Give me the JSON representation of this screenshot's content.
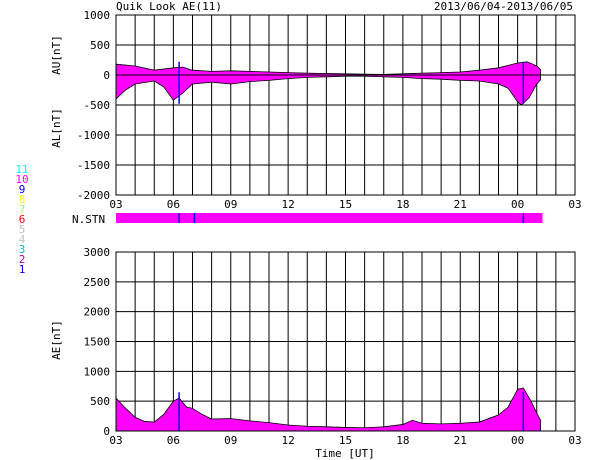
{
  "header": {
    "title": "Quik Look AE(11)",
    "date_range": "2013/06/04-2013/06/05"
  },
  "colors": {
    "fill": "#ff00ff",
    "axis": "#000000",
    "marker": "#0000ff",
    "station_bar": "#ff00ff"
  },
  "station_legend": [
    {
      "label": "11",
      "color": "#00ffff"
    },
    {
      "label": "10",
      "color": "#ff00ff"
    },
    {
      "label": "9",
      "color": "#0000ff"
    },
    {
      "label": "8",
      "color": "#ffff00"
    },
    {
      "label": "7",
      "color": "#a0ff60"
    },
    {
      "label": "6",
      "color": "#ff0000"
    },
    {
      "label": "5",
      "color": "#c0c0c0"
    },
    {
      "label": "4",
      "color": "#c0c0c0"
    },
    {
      "label": "3",
      "color": "#00c0c0"
    },
    {
      "label": "2",
      "color": "#b000b0"
    },
    {
      "label": "1",
      "color": "#0000ff"
    }
  ],
  "station_label": "N.STN",
  "xlabel": "Time [UT]",
  "chart_data": [
    {
      "type": "area",
      "ylabel_upper": "AU[nT]",
      "ylabel_lower": "AL[nT]",
      "ylim": [
        -2000,
        1000
      ],
      "y_ticks": [
        1000,
        500,
        0,
        -500,
        -1000,
        -1500,
        -2000
      ],
      "x_ticks": [
        "03",
        "06",
        "09",
        "12",
        "15",
        "18",
        "21",
        "00",
        "03"
      ],
      "x_range_hours": [
        3,
        27
      ],
      "grid": true,
      "series": [
        {
          "values_au": [
            [
              3,
              180
            ],
            [
              4,
              150
            ],
            [
              5,
              80
            ],
            [
              6,
              120
            ],
            [
              6.5,
              130
            ],
            [
              7,
              80
            ],
            [
              8,
              60
            ],
            [
              9,
              70
            ],
            [
              10,
              60
            ],
            [
              11,
              50
            ],
            [
              12,
              40
            ],
            [
              13,
              30
            ],
            [
              14,
              25
            ],
            [
              15,
              20
            ],
            [
              16,
              15
            ],
            [
              17,
              10
            ],
            [
              18,
              20
            ],
            [
              19,
              30
            ],
            [
              20,
              40
            ],
            [
              21,
              50
            ],
            [
              22,
              80
            ],
            [
              23,
              120
            ],
            [
              24,
              200
            ],
            [
              24.5,
              220
            ],
            [
              25,
              150
            ],
            [
              25.2,
              90
            ]
          ],
          "values_al": [
            [
              3,
              -400
            ],
            [
              3.5,
              -250
            ],
            [
              4,
              -150
            ],
            [
              5,
              -100
            ],
            [
              5.5,
              -200
            ],
            [
              6,
              -420
            ],
            [
              6.5,
              -300
            ],
            [
              7,
              -150
            ],
            [
              8,
              -120
            ],
            [
              9,
              -150
            ],
            [
              10,
              -110
            ],
            [
              11,
              -90
            ],
            [
              12,
              -60
            ],
            [
              13,
              -40
            ],
            [
              14,
              -30
            ],
            [
              15,
              -20
            ],
            [
              16,
              -20
            ],
            [
              17,
              -30
            ],
            [
              18,
              -40
            ],
            [
              19,
              -60
            ],
            [
              20,
              -70
            ],
            [
              21,
              -90
            ],
            [
              22,
              -100
            ],
            [
              23,
              -150
            ],
            [
              23.5,
              -220
            ],
            [
              24,
              -450
            ],
            [
              24.2,
              -500
            ],
            [
              24.6,
              -380
            ],
            [
              25,
              -150
            ],
            [
              25.2,
              -80
            ]
          ]
        }
      ]
    },
    {
      "type": "area",
      "ylabel": "AE[nT]",
      "ylim": [
        0,
        3000
      ],
      "y_ticks": [
        3000,
        2500,
        2000,
        1500,
        1000,
        500,
        0
      ],
      "x_ticks": [
        "03",
        "06",
        "09",
        "12",
        "15",
        "18",
        "21",
        "00",
        "03"
      ],
      "x_range_hours": [
        3,
        27
      ],
      "grid": true,
      "series": [
        {
          "values": [
            [
              3,
              550
            ],
            [
              3.5,
              380
            ],
            [
              4,
              230
            ],
            [
              4.5,
              160
            ],
            [
              5,
              150
            ],
            [
              5.5,
              280
            ],
            [
              6,
              500
            ],
            [
              6.3,
              550
            ],
            [
              6.7,
              400
            ],
            [
              7,
              380
            ],
            [
              7.5,
              280
            ],
            [
              8,
              200
            ],
            [
              9,
              210
            ],
            [
              10,
              170
            ],
            [
              11,
              140
            ],
            [
              12,
              100
            ],
            [
              13,
              80
            ],
            [
              14,
              70
            ],
            [
              15,
              60
            ],
            [
              16,
              55
            ],
            [
              17,
              70
            ],
            [
              18,
              110
            ],
            [
              18.5,
              180
            ],
            [
              19,
              130
            ],
            [
              20,
              120
            ],
            [
              21,
              130
            ],
            [
              22,
              150
            ],
            [
              23,
              270
            ],
            [
              23.5,
              400
            ],
            [
              24,
              700
            ],
            [
              24.3,
              720
            ],
            [
              24.7,
              500
            ],
            [
              25,
              300
            ],
            [
              25.2,
              180
            ]
          ]
        }
      ]
    }
  ]
}
